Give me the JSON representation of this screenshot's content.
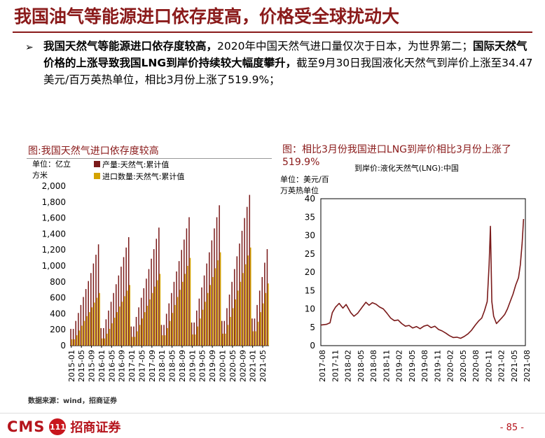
{
  "header": {
    "title": "我国油气等能源进口依存度高，价格受全球扰动大"
  },
  "bullet": {
    "marker": "Ø",
    "bold_1": "我国天然气等能源进口依存度较高，",
    "text_1": "2020年中国天然气进口量仅次于日本，为世界第二；",
    "bold_2": "国际天然气价格的上涨导致我国LNG到岸价持续较大幅度攀升，",
    "text_2": "截至9月30日我国液化天然气到岸价上涨至34.47美元/百万英热单位，相比3月份上涨了519.9%；"
  },
  "chart_data": [
    {
      "type": "bar",
      "title": "图:我国天然气进口依存度较高",
      "ylabel": "单位：亿立方米",
      "ylim": [
        0,
        2000
      ],
      "yticks": [
        "2,000",
        "1,800",
        "1,600",
        "1,400",
        "1,200",
        "1,000",
        "800",
        "600",
        "400",
        "200",
        "0"
      ],
      "xticks": [
        "2015-01",
        "2015-05",
        "2015-09",
        "2016-01",
        "2016-05",
        "2016-09",
        "2017-01",
        "2017-05",
        "2017-09",
        "2018-01",
        "2018-05",
        "2018-09",
        "2019-01",
        "2019-05",
        "2019-09",
        "2020-01",
        "2020-05",
        "2020-09",
        "2021-01",
        "2021-05"
      ],
      "legend_position": "top-left",
      "series": [
        {
          "name": "产量:天然气:累计值",
          "color": "#7a1a1a",
          "values": [
            210,
            210,
            310,
            410,
            510,
            610,
            710,
            810,
            910,
            1030,
            1140,
            1270,
            220,
            220,
            330,
            440,
            550,
            660,
            770,
            880,
            990,
            1110,
            1230,
            1360,
            240,
            240,
            360,
            480,
            600,
            720,
            840,
            960,
            1090,
            1210,
            1340,
            1480,
            260,
            260,
            400,
            530,
            660,
            800,
            930,
            1060,
            1200,
            1330,
            1470,
            1610,
            290,
            290,
            440,
            590,
            730,
            880,
            1030,
            1170,
            1320,
            1470,
            1610,
            1760,
            310,
            310,
            470,
            640,
            800,
            960,
            1120,
            1280,
            1440,
            1600,
            1740,
            1890,
            340,
            340,
            510,
            690,
            860,
            1040,
            1210
          ]
        },
        {
          "name": "进口数量:天然气:累计值",
          "color": "#d4a300",
          "values": [
            80,
            80,
            130,
            190,
            250,
            310,
            370,
            420,
            480,
            540,
            600,
            660,
            90,
            90,
            150,
            210,
            280,
            350,
            420,
            490,
            550,
            620,
            690,
            760,
            110,
            110,
            180,
            260,
            340,
            420,
            500,
            580,
            660,
            740,
            820,
            900,
            130,
            130,
            220,
            310,
            410,
            510,
            610,
            700,
            800,
            900,
            1000,
            1100,
            140,
            140,
            240,
            340,
            450,
            550,
            660,
            760,
            860,
            970,
            1070,
            1170,
            150,
            150,
            260,
            360,
            470,
            580,
            690,
            800,
            910,
            1020,
            1130,
            1230,
            180,
            180,
            300,
            420,
            530,
            660,
            780
          ]
        }
      ]
    },
    {
      "type": "line",
      "title": "图：相比3月份我国进口LNG到岸价相比3月份上涨了519.9%",
      "ylabel": "单位：美元/百万英热单位",
      "ylim": [
        0,
        40
      ],
      "yticks": [
        "40",
        "35",
        "30",
        "25",
        "20",
        "15",
        "10",
        "5",
        "0"
      ],
      "xticks": [
        "2017-08",
        "2017-11",
        "2018-02",
        "2018-05",
        "2018-08",
        "2018-11",
        "2019-02",
        "2019-05",
        "2019-08",
        "2019-11",
        "2020-02",
        "2020-05",
        "2020-08",
        "2020-11",
        "2021-02",
        "2021-05",
        "2021-08"
      ],
      "legend_position": "top-left",
      "series": [
        {
          "name": "到岸价:液化天然气(LNG):中国",
          "color": "#7a1a1a",
          "points": [
            [
              0,
              5.6
            ],
            [
              1.2,
              5.8
            ],
            [
              2,
              6.2
            ],
            [
              2.5,
              9
            ],
            [
              3.2,
              10.5
            ],
            [
              4,
              11.5
            ],
            [
              4.8,
              10.2
            ],
            [
              5.5,
              11.2
            ],
            [
              6.5,
              9.0
            ],
            [
              7.2,
              8.0
            ],
            [
              8,
              8.8
            ],
            [
              9,
              10.5
            ],
            [
              9.8,
              11.8
            ],
            [
              10.5,
              11.0
            ],
            [
              11.2,
              11.7
            ],
            [
              12,
              11.3
            ],
            [
              12.8,
              10.5
            ],
            [
              13.6,
              10.0
            ],
            [
              14.4,
              8.8
            ],
            [
              15.2,
              7.5
            ],
            [
              16,
              6.8
            ],
            [
              16.8,
              7.0
            ],
            [
              17.6,
              6.0
            ],
            [
              18.4,
              5.3
            ],
            [
              19.2,
              5.5
            ],
            [
              20,
              4.8
            ],
            [
              20.8,
              5.2
            ],
            [
              21.6,
              4.6
            ],
            [
              22.4,
              5.3
            ],
            [
              23.2,
              5.6
            ],
            [
              24,
              4.9
            ],
            [
              24.8,
              5.3
            ],
            [
              25.6,
              4.4
            ],
            [
              26.4,
              4.0
            ],
            [
              27.2,
              3.4
            ],
            [
              28,
              2.7
            ],
            [
              28.8,
              2.2
            ],
            [
              29.6,
              2.3
            ],
            [
              30.4,
              2.0
            ],
            [
              31.2,
              2.5
            ],
            [
              32,
              3.2
            ],
            [
              32.8,
              4.2
            ],
            [
              33.6,
              5.6
            ],
            [
              34.4,
              6.8
            ],
            [
              35,
              7.5
            ],
            [
              35.6,
              9.5
            ],
            [
              36.2,
              12.0
            ],
            [
              36.6,
              22.0
            ],
            [
              36.9,
              32.5
            ],
            [
              37.2,
              12.0
            ],
            [
              37.6,
              8.0
            ],
            [
              38.2,
              6.0
            ],
            [
              38.8,
              6.8
            ],
            [
              39.4,
              7.6
            ],
            [
              40,
              8.5
            ],
            [
              40.6,
              10.0
            ],
            [
              41.2,
              12.0
            ],
            [
              41.8,
              14.0
            ],
            [
              42.4,
              16.5
            ],
            [
              43,
              18.5
            ],
            [
              43.4,
              22.0
            ],
            [
              43.8,
              28.0
            ],
            [
              44.1,
              34.47
            ]
          ],
          "x_span": [
            0,
            44.5
          ]
        }
      ]
    }
  ],
  "footer": {
    "source": "数据来源：wind，招商证券",
    "logo_text": "CMS",
    "logo_badge": "111",
    "logo_cn": "招商证券",
    "page": "- 85 -"
  }
}
